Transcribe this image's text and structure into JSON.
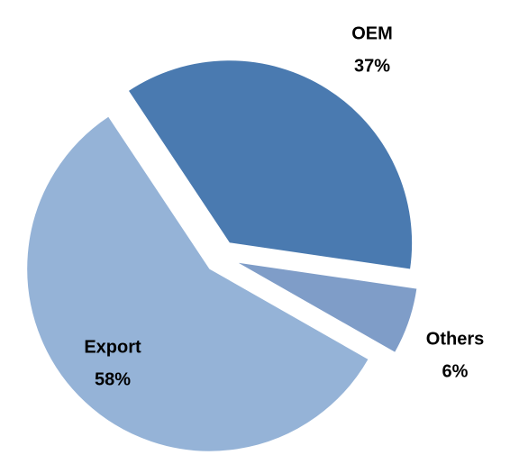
{
  "chart_data": {
    "type": "pie",
    "categories": [
      "OEM",
      "Others",
      "Export"
    ],
    "values": [
      37,
      6,
      58
    ],
    "value_labels": [
      "37%",
      "6%",
      "58%"
    ],
    "colors": [
      "#4a7ab0",
      "#7f9dc8",
      "#95b3d7"
    ],
    "exploded": true
  }
}
